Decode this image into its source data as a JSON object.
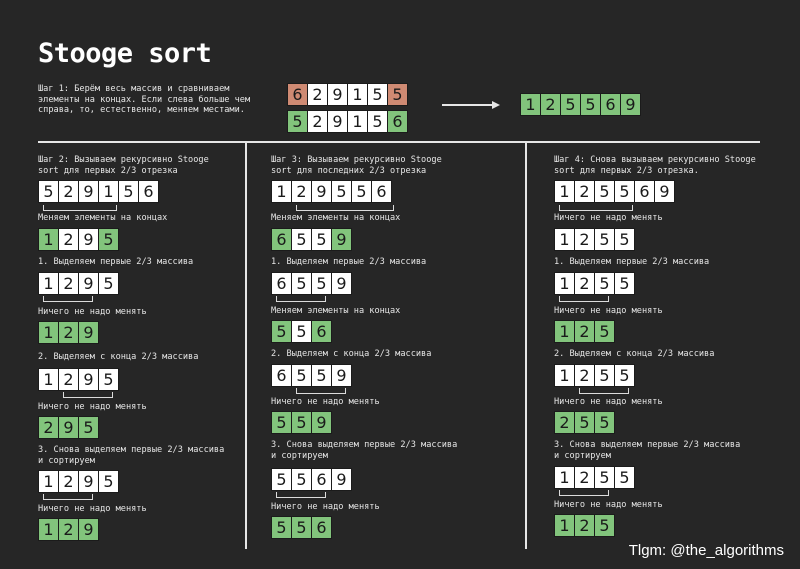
{
  "title": "Stooge sort",
  "watermark": "Tlgm: @the_algorithms",
  "step1": {
    "text": "Шаг 1: Берём весь массив и сравниваем\nэлементы на концах. Если слева больше чем\nсправа, то, естественно, меняем местами.",
    "array_before": [
      "6",
      "2",
      "9",
      "1",
      "5",
      "5"
    ],
    "array_after": [
      "5",
      "2",
      "9",
      "1",
      "5",
      "6"
    ],
    "result": [
      "1",
      "2",
      "5",
      "5",
      "6",
      "9"
    ]
  },
  "step2": {
    "heading": "Шаг 2: Вызываем рекурсивно Stooge\nsort для первых 2/3 отрезка",
    "array": [
      "5",
      "2",
      "9",
      "1",
      "5",
      "6"
    ],
    "swap_label": "Меняем элементы на концах",
    "swap_result": [
      "1",
      "2",
      "9",
      "5"
    ],
    "sub1_label": "1. Выделяем первые 2/3 массива",
    "sub1_array": [
      "1",
      "2",
      "9",
      "5"
    ],
    "sub1_note": "Ничего не надо менять",
    "sub1_result": [
      "1",
      "2",
      "9"
    ],
    "sub2_label": "2. Выделяем с конца 2/3 массива",
    "sub2_array": [
      "1",
      "2",
      "9",
      "5"
    ],
    "sub2_note": "Ничего не надо менять",
    "sub2_result": [
      "2",
      "9",
      "5"
    ],
    "sub3_label": "3. Снова выделяем первые 2/3 массива\n    и сортируем",
    "sub3_array": [
      "1",
      "2",
      "9",
      "5"
    ],
    "sub3_note": "Ничего не надо менять",
    "sub3_result": [
      "1",
      "2",
      "9"
    ]
  },
  "step3": {
    "heading": "Шаг 3: Вызываем рекурсивно Stooge\nsort для последних 2/3 отрезка",
    "array": [
      "1",
      "2",
      "9",
      "5",
      "5",
      "6"
    ],
    "swap_label": "Меняем элементы на концах",
    "swap_result": [
      "6",
      "5",
      "5",
      "9"
    ],
    "sub1_label": "1. Выделяем первые 2/3 массива",
    "sub1_array": [
      "6",
      "5",
      "5",
      "9"
    ],
    "sub1_note": "Меняем элементы на концах",
    "sub1_result": [
      "5",
      "5",
      "6"
    ],
    "sub2_label": "2. Выделяем с конца 2/3 массива",
    "sub2_array": [
      "6",
      "5",
      "5",
      "9"
    ],
    "sub2_note": "Ничего не надо менять",
    "sub2_result": [
      "5",
      "5",
      "9"
    ],
    "sub3_label": "3. Снова выделяем первые 2/3 массива\n    и сортируем",
    "sub3_array": [
      "5",
      "5",
      "6",
      "9"
    ],
    "sub3_note": "Ничего не надо менять",
    "sub3_result": [
      "5",
      "5",
      "6"
    ]
  },
  "step4": {
    "heading": "Шаг 4: Снова вызываем рекурсивно Stooge\nsort для первых 2/3 отрезка.",
    "array": [
      "1",
      "2",
      "5",
      "5",
      "6",
      "9"
    ],
    "swap_label": "Ничего не надо менять",
    "swap_result": [
      "1",
      "2",
      "5",
      "5"
    ],
    "sub1_label": "1. Выделяем первые 2/3 массива",
    "sub1_array": [
      "1",
      "2",
      "5",
      "5"
    ],
    "sub1_note": "Ничего не надо менять",
    "sub1_result": [
      "1",
      "2",
      "5"
    ],
    "sub2_label": "2. Выделяем с конца 2/3 массива",
    "sub2_array": [
      "1",
      "2",
      "5",
      "5"
    ],
    "sub2_note": "Ничего не надо менять",
    "sub2_result": [
      "2",
      "5",
      "5"
    ],
    "sub3_label": "3. Снова выделяем первые 2/3 массива\n    и сортируем",
    "sub3_array": [
      "1",
      "2",
      "5",
      "5"
    ],
    "sub3_note": "Ничего не надо менять",
    "sub3_result": [
      "1",
      "2",
      "5"
    ]
  },
  "colors": {
    "white_cell": "#ffffff",
    "green_cell": "#82c47c",
    "red_cell": "#cf8a73",
    "background": "#262626"
  }
}
